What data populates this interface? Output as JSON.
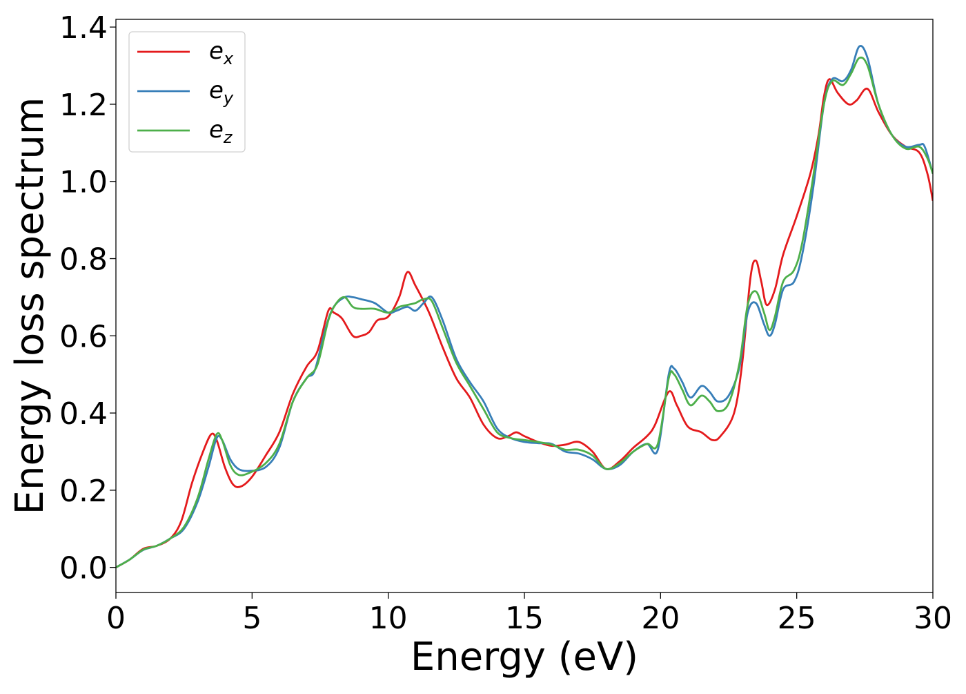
{
  "chart_data": {
    "type": "line",
    "title": "",
    "xlabel": "Energy (eV)",
    "ylabel": "Energy loss spectrum",
    "xlim": [
      0,
      30
    ],
    "ylim": [
      -0.065,
      1.42
    ],
    "xticks": [
      0,
      5,
      10,
      15,
      20,
      25,
      30
    ],
    "yticks": [
      0.0,
      0.2,
      0.4,
      0.6,
      0.8,
      1.0,
      1.2,
      1.4
    ],
    "xtick_labels": [
      "0",
      "5",
      "10",
      "15",
      "20",
      "25",
      "30"
    ],
    "ytick_labels": [
      "0.0",
      "0.2",
      "0.4",
      "0.6",
      "0.8",
      "1.0",
      "1.2",
      "1.4"
    ],
    "grid": false,
    "legend_position": "top-left",
    "series": [
      {
        "name": "e_x",
        "legend_base": "e",
        "legend_sub": "x",
        "color": "#e41a1c",
        "points": [
          [
            0,
            0.0
          ],
          [
            0.5,
            0.02
          ],
          [
            1.0,
            0.048
          ],
          [
            1.5,
            0.056
          ],
          [
            2.0,
            0.075
          ],
          [
            2.4,
            0.12
          ],
          [
            2.8,
            0.22
          ],
          [
            3.2,
            0.3
          ],
          [
            3.5,
            0.345
          ],
          [
            3.7,
            0.33
          ],
          [
            4.0,
            0.26
          ],
          [
            4.3,
            0.215
          ],
          [
            4.6,
            0.21
          ],
          [
            5.0,
            0.235
          ],
          [
            5.5,
            0.29
          ],
          [
            6.0,
            0.35
          ],
          [
            6.5,
            0.45
          ],
          [
            7.0,
            0.52
          ],
          [
            7.4,
            0.56
          ],
          [
            7.8,
            0.665
          ],
          [
            8.0,
            0.66
          ],
          [
            8.3,
            0.645
          ],
          [
            8.7,
            0.6
          ],
          [
            9.0,
            0.6
          ],
          [
            9.3,
            0.61
          ],
          [
            9.6,
            0.64
          ],
          [
            10.0,
            0.65
          ],
          [
            10.4,
            0.7
          ],
          [
            10.7,
            0.765
          ],
          [
            11.0,
            0.73
          ],
          [
            11.5,
            0.66
          ],
          [
            12.0,
            0.57
          ],
          [
            12.5,
            0.49
          ],
          [
            13.0,
            0.44
          ],
          [
            13.5,
            0.37
          ],
          [
            14.0,
            0.335
          ],
          [
            14.4,
            0.34
          ],
          [
            14.7,
            0.35
          ],
          [
            15.0,
            0.34
          ],
          [
            15.5,
            0.325
          ],
          [
            16.0,
            0.315
          ],
          [
            16.5,
            0.318
          ],
          [
            17.0,
            0.325
          ],
          [
            17.5,
            0.3
          ],
          [
            18.0,
            0.255
          ],
          [
            18.5,
            0.275
          ],
          [
            19.0,
            0.31
          ],
          [
            19.5,
            0.34
          ],
          [
            19.8,
            0.37
          ],
          [
            20.3,
            0.455
          ],
          [
            20.6,
            0.42
          ],
          [
            21.0,
            0.365
          ],
          [
            21.5,
            0.35
          ],
          [
            21.9,
            0.33
          ],
          [
            22.2,
            0.34
          ],
          [
            22.7,
            0.4
          ],
          [
            23.0,
            0.53
          ],
          [
            23.3,
            0.75
          ],
          [
            23.5,
            0.795
          ],
          [
            23.7,
            0.74
          ],
          [
            23.9,
            0.68
          ],
          [
            24.2,
            0.72
          ],
          [
            24.5,
            0.81
          ],
          [
            25.0,
            0.91
          ],
          [
            25.5,
            1.02
          ],
          [
            25.8,
            1.12
          ],
          [
            26.0,
            1.22
          ],
          [
            26.2,
            1.265
          ],
          [
            26.5,
            1.23
          ],
          [
            26.9,
            1.2
          ],
          [
            27.2,
            1.21
          ],
          [
            27.6,
            1.24
          ],
          [
            28.0,
            1.18
          ],
          [
            28.5,
            1.12
          ],
          [
            29.0,
            1.09
          ],
          [
            29.5,
            1.075
          ],
          [
            29.8,
            1.02
          ],
          [
            30.0,
            0.95
          ]
        ]
      },
      {
        "name": "e_y",
        "legend_base": "e",
        "legend_sub": "y",
        "color": "#377eb8",
        "points": [
          [
            0,
            0.0
          ],
          [
            0.5,
            0.02
          ],
          [
            1.0,
            0.045
          ],
          [
            1.5,
            0.056
          ],
          [
            2.0,
            0.075
          ],
          [
            2.5,
            0.1
          ],
          [
            3.0,
            0.17
          ],
          [
            3.4,
            0.26
          ],
          [
            3.7,
            0.335
          ],
          [
            3.9,
            0.33
          ],
          [
            4.2,
            0.28
          ],
          [
            4.5,
            0.255
          ],
          [
            4.9,
            0.25
          ],
          [
            5.5,
            0.26
          ],
          [
            6.0,
            0.31
          ],
          [
            6.5,
            0.43
          ],
          [
            7.0,
            0.49
          ],
          [
            7.3,
            0.51
          ],
          [
            7.7,
            0.62
          ],
          [
            8.0,
            0.675
          ],
          [
            8.4,
            0.7
          ],
          [
            8.7,
            0.7
          ],
          [
            9.0,
            0.695
          ],
          [
            9.5,
            0.685
          ],
          [
            10.0,
            0.66
          ],
          [
            10.3,
            0.665
          ],
          [
            10.7,
            0.675
          ],
          [
            11.0,
            0.665
          ],
          [
            11.3,
            0.685
          ],
          [
            11.6,
            0.7
          ],
          [
            12.0,
            0.64
          ],
          [
            12.5,
            0.54
          ],
          [
            13.0,
            0.48
          ],
          [
            13.5,
            0.43
          ],
          [
            14.0,
            0.36
          ],
          [
            14.5,
            0.335
          ],
          [
            15.0,
            0.325
          ],
          [
            15.5,
            0.322
          ],
          [
            16.0,
            0.32
          ],
          [
            16.5,
            0.3
          ],
          [
            17.0,
            0.295
          ],
          [
            17.5,
            0.28
          ],
          [
            18.0,
            0.255
          ],
          [
            18.5,
            0.265
          ],
          [
            19.0,
            0.3
          ],
          [
            19.5,
            0.32
          ],
          [
            19.9,
            0.305
          ],
          [
            20.3,
            0.5
          ],
          [
            20.5,
            0.515
          ],
          [
            20.8,
            0.48
          ],
          [
            21.1,
            0.44
          ],
          [
            21.5,
            0.47
          ],
          [
            21.8,
            0.455
          ],
          [
            22.1,
            0.43
          ],
          [
            22.5,
            0.445
          ],
          [
            22.9,
            0.52
          ],
          [
            23.2,
            0.66
          ],
          [
            23.5,
            0.685
          ],
          [
            23.8,
            0.63
          ],
          [
            24.0,
            0.6
          ],
          [
            24.2,
            0.63
          ],
          [
            24.5,
            0.72
          ],
          [
            24.9,
            0.74
          ],
          [
            25.2,
            0.81
          ],
          [
            25.6,
            0.98
          ],
          [
            26.0,
            1.2
          ],
          [
            26.3,
            1.265
          ],
          [
            26.7,
            1.26
          ],
          [
            27.0,
            1.29
          ],
          [
            27.3,
            1.35
          ],
          [
            27.6,
            1.32
          ],
          [
            28.0,
            1.2
          ],
          [
            28.5,
            1.12
          ],
          [
            29.0,
            1.09
          ],
          [
            29.5,
            1.095
          ],
          [
            29.7,
            1.09
          ],
          [
            30.0,
            1.02
          ]
        ]
      },
      {
        "name": "e_z",
        "legend_base": "e",
        "legend_sub": "z",
        "color": "#4daf4a",
        "points": [
          [
            0,
            0.0
          ],
          [
            0.5,
            0.02
          ],
          [
            1.0,
            0.046
          ],
          [
            1.5,
            0.056
          ],
          [
            2.0,
            0.075
          ],
          [
            2.5,
            0.105
          ],
          [
            3.0,
            0.18
          ],
          [
            3.4,
            0.28
          ],
          [
            3.7,
            0.345
          ],
          [
            3.9,
            0.33
          ],
          [
            4.2,
            0.265
          ],
          [
            4.5,
            0.24
          ],
          [
            4.9,
            0.245
          ],
          [
            5.5,
            0.27
          ],
          [
            6.0,
            0.32
          ],
          [
            6.5,
            0.43
          ],
          [
            7.0,
            0.49
          ],
          [
            7.4,
            0.525
          ],
          [
            7.8,
            0.64
          ],
          [
            8.1,
            0.685
          ],
          [
            8.4,
            0.7
          ],
          [
            8.7,
            0.675
          ],
          [
            9.0,
            0.67
          ],
          [
            9.5,
            0.67
          ],
          [
            10.0,
            0.66
          ],
          [
            10.4,
            0.675
          ],
          [
            10.7,
            0.68
          ],
          [
            11.0,
            0.685
          ],
          [
            11.3,
            0.695
          ],
          [
            11.6,
            0.69
          ],
          [
            12.0,
            0.62
          ],
          [
            12.5,
            0.53
          ],
          [
            13.0,
            0.47
          ],
          [
            13.5,
            0.41
          ],
          [
            14.0,
            0.35
          ],
          [
            14.5,
            0.335
          ],
          [
            15.0,
            0.33
          ],
          [
            15.5,
            0.325
          ],
          [
            16.0,
            0.318
          ],
          [
            16.5,
            0.305
          ],
          [
            17.0,
            0.305
          ],
          [
            17.5,
            0.29
          ],
          [
            18.0,
            0.255
          ],
          [
            18.5,
            0.27
          ],
          [
            19.0,
            0.3
          ],
          [
            19.5,
            0.32
          ],
          [
            19.9,
            0.32
          ],
          [
            20.3,
            0.49
          ],
          [
            20.5,
            0.5
          ],
          [
            20.8,
            0.46
          ],
          [
            21.1,
            0.42
          ],
          [
            21.5,
            0.445
          ],
          [
            21.8,
            0.43
          ],
          [
            22.1,
            0.405
          ],
          [
            22.5,
            0.425
          ],
          [
            22.9,
            0.53
          ],
          [
            23.2,
            0.68
          ],
          [
            23.5,
            0.715
          ],
          [
            23.8,
            0.66
          ],
          [
            24.0,
            0.615
          ],
          [
            24.2,
            0.65
          ],
          [
            24.5,
            0.74
          ],
          [
            24.9,
            0.77
          ],
          [
            25.2,
            0.84
          ],
          [
            25.6,
            1.01
          ],
          [
            26.0,
            1.2
          ],
          [
            26.3,
            1.26
          ],
          [
            26.7,
            1.25
          ],
          [
            27.0,
            1.28
          ],
          [
            27.3,
            1.32
          ],
          [
            27.6,
            1.3
          ],
          [
            28.0,
            1.2
          ],
          [
            28.5,
            1.12
          ],
          [
            29.0,
            1.085
          ],
          [
            29.5,
            1.09
          ],
          [
            29.8,
            1.06
          ],
          [
            30.0,
            1.02
          ]
        ]
      }
    ]
  }
}
